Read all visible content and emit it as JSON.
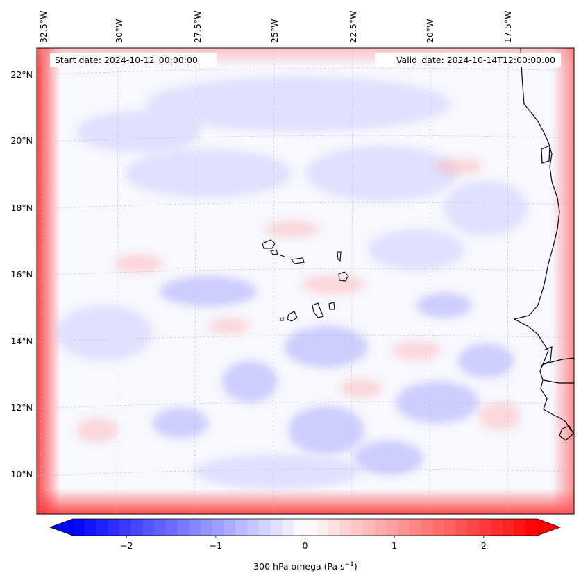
{
  "map": {
    "start_date_text": "Start date: 2024-10-12_00:00:00",
    "valid_date_text": "Valid_date: 2024-10-14T12:00:00.00",
    "longitude_labels": [
      "32.5°W",
      "30°W",
      "27.5°W",
      "25°W",
      "22.5°W",
      "20°W",
      "17.5°W"
    ],
    "latitude_labels": [
      "22°N",
      "20°N",
      "18°N",
      "16°N",
      "14°N",
      "12°N",
      "10°N"
    ],
    "field": "300 hPa omega",
    "colormap": "bwr",
    "coastline_color": "#000000",
    "gridlines": true
  },
  "colorbar": {
    "label": "300 hPa omega (Pa s",
    "label_sup": "−1",
    "label_tail": ")",
    "ticks": [
      "−2",
      "−1",
      "0",
      "1",
      "2"
    ],
    "tick_values": [
      -2,
      -1,
      0,
      1,
      2
    ],
    "range": [
      -2.6,
      2.6
    ],
    "extend": "both",
    "colors": {
      "min": "#0000ff",
      "mid": "#ffffff",
      "max": "#ff0000"
    }
  }
}
